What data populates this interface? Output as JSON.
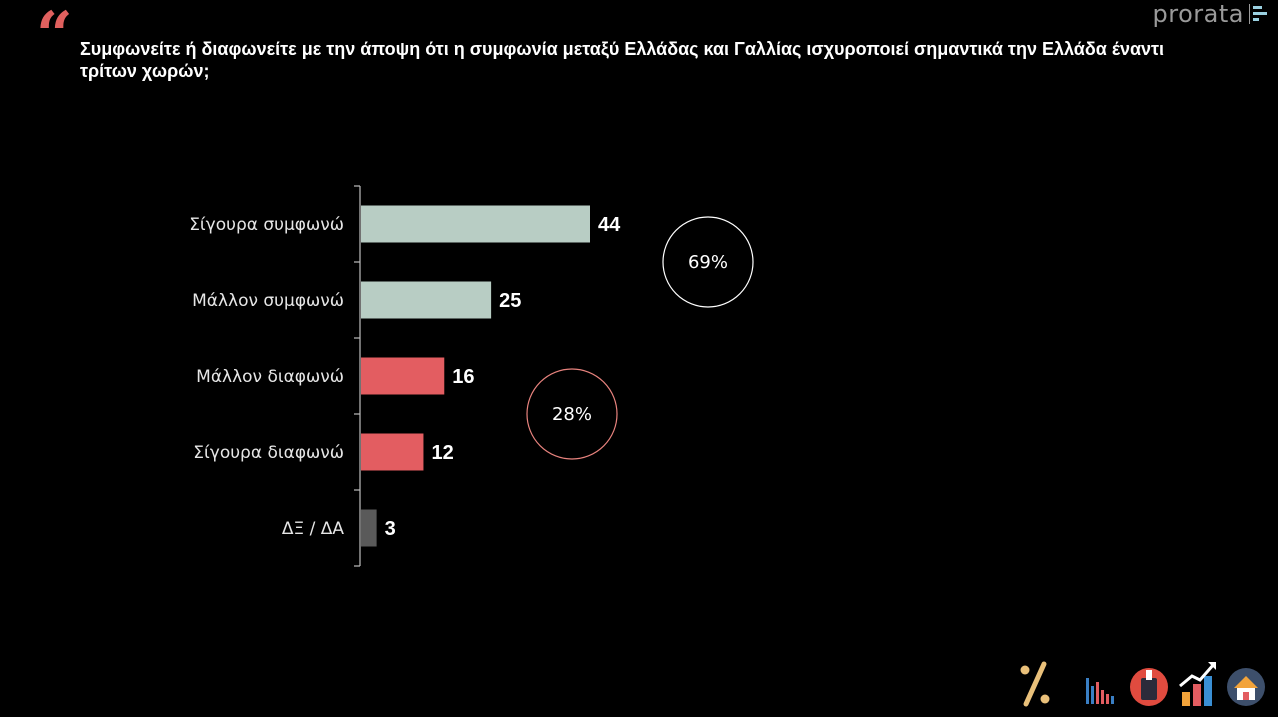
{
  "header": {
    "quote_mark": "“",
    "title": "Συμφωνείτε ή διαφωνείτε με την άποψη ότι η συμφωνία μεταξύ Ελλάδας και Γαλλίας ισχυροποιεί σημαντικά την Ελλάδα έναντι τρίτων χωρών;",
    "brand": "prorata"
  },
  "chart_data": {
    "type": "bar",
    "orientation": "horizontal",
    "title": "Συμφωνείτε ή διαφωνείτε με την άποψη ότι η συμφωνία μεταξύ Ελλάδας και Γαλλίας ισχυροποιεί σημαντικά την Ελλάδα έναντι τρίτων χωρών;",
    "xlabel": "",
    "ylabel": "",
    "categories": [
      "Σίγουρα συμφωνώ",
      "Μάλλον συμφωνώ",
      "Μάλλον διαφωνώ",
      "Σίγουρα διαφωνώ",
      "ΔΞ / ΔΑ"
    ],
    "values": [
      44,
      25,
      16,
      12,
      3
    ],
    "colors": [
      "#b8cdc4",
      "#b8cdc4",
      "#e35d61",
      "#e35d61",
      "#5a5a5a"
    ],
    "xlim": [
      0,
      44
    ],
    "grid": false,
    "annotations": [
      {
        "text": "69%",
        "groups": [
          "Σίγουρα συμφωνώ",
          "Μάλλον συμφωνώ"
        ],
        "stroke": "#ffffff"
      },
      {
        "text": "28%",
        "groups": [
          "Μάλλον διαφωνώ",
          "Σίγουρα διαφωνώ"
        ],
        "stroke": "#e8837e"
      }
    ]
  },
  "footer": {
    "icons": [
      "percent-icon",
      "bar-chart-icon",
      "ballot-box-icon",
      "growth-chart-icon",
      "house-icon"
    ]
  }
}
